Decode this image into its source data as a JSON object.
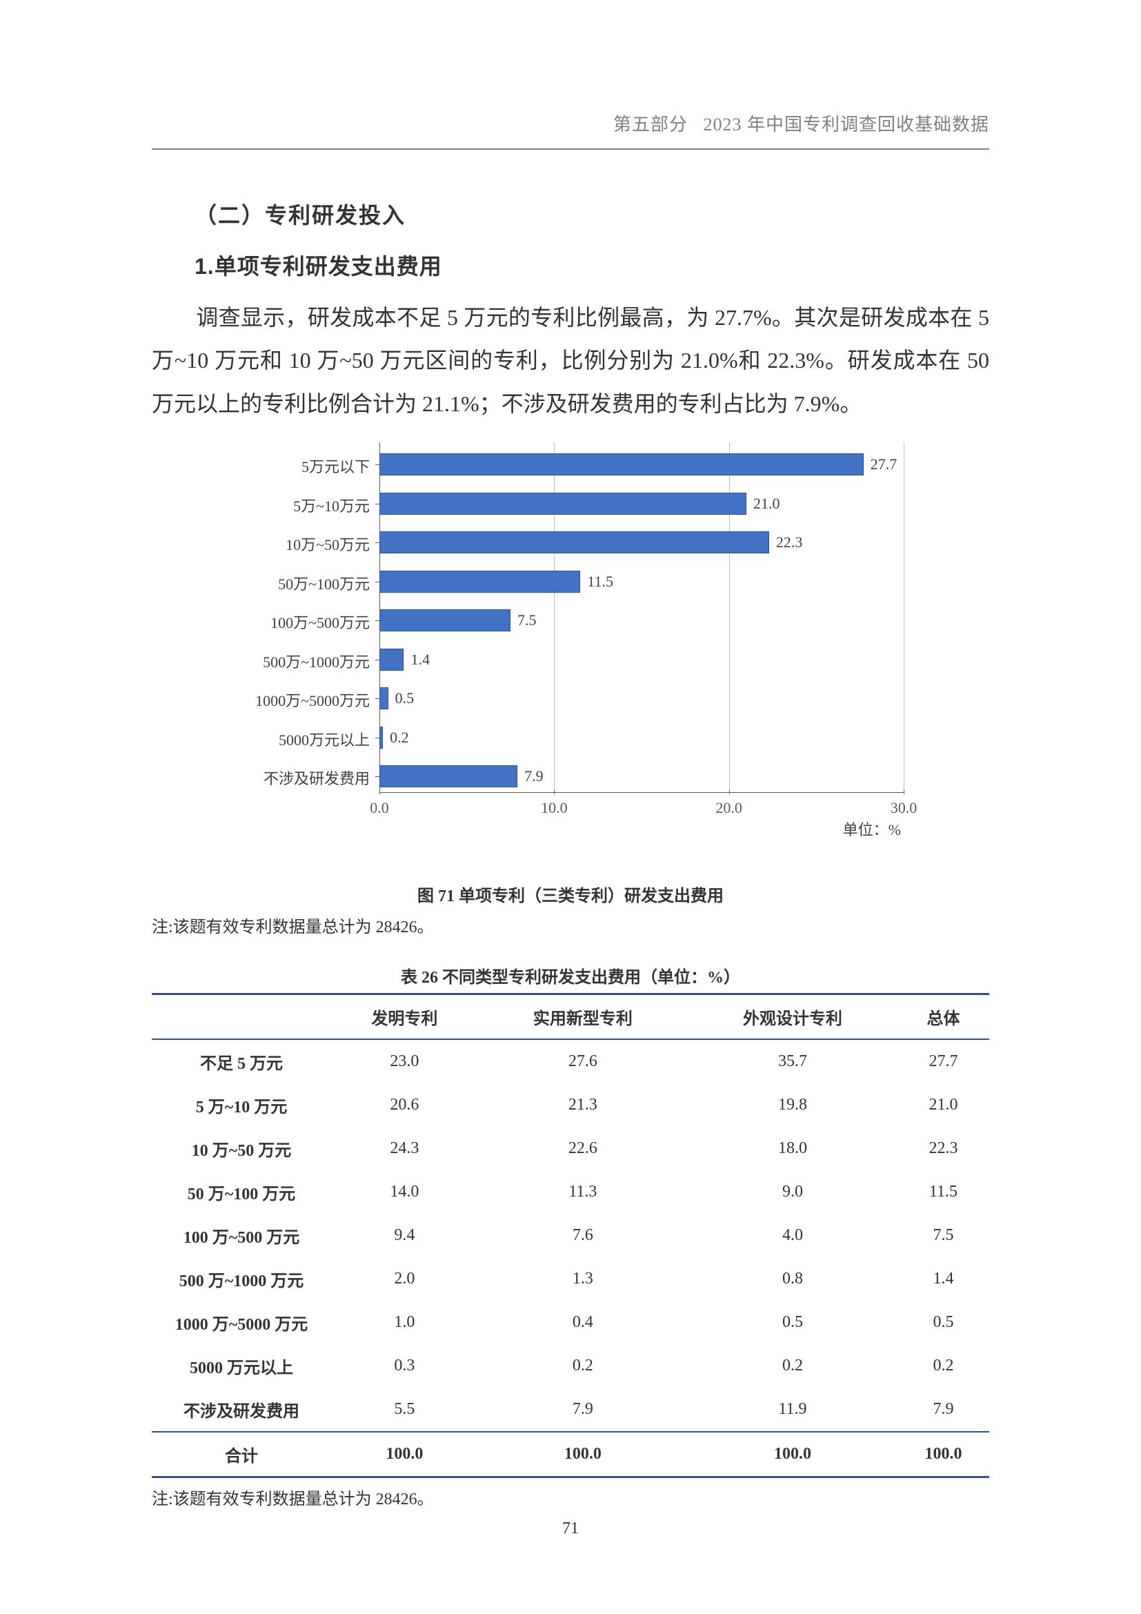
{
  "header": {
    "section": "第五部分",
    "title": "2023 年中国专利调查回收基础数据"
  },
  "headings": {
    "h2": "（二）专利研发投入",
    "h3": "1.单项专利研发支出费用"
  },
  "paragraph": "调查显示，研发成本不足 5 万元的专利比例最高，为 27.7%。其次是研发成本在 5 万~10 万元和 10 万~50 万元区间的专利，比例分别为 21.0%和 22.3%。研发成本在 50 万元以上的专利比例合计为 21.1%；不涉及研发费用的专利占比为 7.9%。",
  "chart": {
    "type": "horizontal-bar",
    "categories": [
      "5万元以下",
      "5万~10万元",
      "10万~50万元",
      "50万~100万元",
      "100万~500万元",
      "500万~1000万元",
      "1000万~5000万元",
      "5000万元以上",
      "不涉及研发费用"
    ],
    "values": [
      27.7,
      21.0,
      22.3,
      11.5,
      7.5,
      1.4,
      0.5,
      0.2,
      7.9
    ],
    "bar_color": "#4472c4",
    "bar_border_color": "#2f528f",
    "xlim": [
      0,
      30
    ],
    "xticks": [
      0.0,
      10.0,
      20.0,
      30.0
    ],
    "grid_color": "#bfbfbf",
    "axis_color": "#595959",
    "unit_label": "单位：%",
    "label_fontsize": 22
  },
  "figure_caption": "图 71 单项专利（三类专利）研发支出费用",
  "note1": "注:该题有效专利数据量总计为 28426。",
  "table": {
    "caption": "表 26 不同类型专利研发支出费用（单位：%）",
    "columns": [
      "",
      "发明专利",
      "实用新型专利",
      "外观设计专利",
      "总体"
    ],
    "rows": [
      [
        "不足 5 万元",
        "23.0",
        "27.6",
        "35.7",
        "27.7"
      ],
      [
        "5 万~10 万元",
        "20.6",
        "21.3",
        "19.8",
        "21.0"
      ],
      [
        "10 万~50 万元",
        "24.3",
        "22.6",
        "18.0",
        "22.3"
      ],
      [
        "50 万~100 万元",
        "14.0",
        "11.3",
        "9.0",
        "11.5"
      ],
      [
        "100 万~500 万元",
        "9.4",
        "7.6",
        "4.0",
        "7.5"
      ],
      [
        "500 万~1000 万元",
        "2.0",
        "1.3",
        "0.8",
        "1.4"
      ],
      [
        "1000 万~5000 万元",
        "1.0",
        "0.4",
        "0.5",
        "0.5"
      ],
      [
        "5000 万元以上",
        "0.3",
        "0.2",
        "0.2",
        "0.2"
      ],
      [
        "不涉及研发费用",
        "5.5",
        "7.9",
        "11.9",
        "7.9"
      ]
    ],
    "total_row": [
      "合计",
      "100.0",
      "100.0",
      "100.0",
      "100.0"
    ]
  },
  "note2": "注:该题有效专利数据量总计为 28426。",
  "page_number": "71"
}
